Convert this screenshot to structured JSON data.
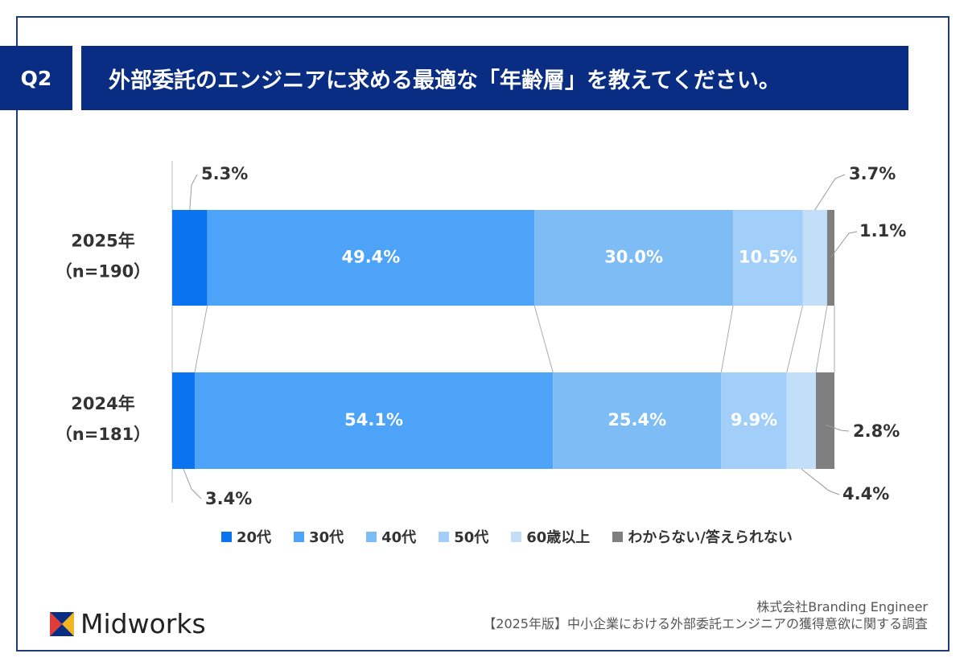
{
  "header": {
    "question_badge": "Q2",
    "title": "外部委託のエンジニアに求める最適な「年齢層」を教えてください。"
  },
  "chart_data": {
    "type": "bar",
    "orientation": "horizontal-stacked-100",
    "categories": [
      "2025年",
      "2024年"
    ],
    "category_sublabels": [
      "（n=190）",
      "（n=181）"
    ],
    "series": [
      {
        "name": "20代",
        "values": [
          5.3,
          3.4
        ],
        "color": "#0a74f0"
      },
      {
        "name": "30代",
        "values": [
          49.4,
          54.1
        ],
        "color": "#4da3f8"
      },
      {
        "name": "40代",
        "values": [
          30.0,
          25.4
        ],
        "color": "#7ebcf6"
      },
      {
        "name": "50代",
        "values": [
          10.5,
          9.9
        ],
        "color": "#a2cffa"
      },
      {
        "name": "60歳以上",
        "values": [
          3.7,
          4.4
        ],
        "color": "#c2def9"
      },
      {
        "name": "わからない/答えられない",
        "values": [
          1.1,
          2.8
        ],
        "color": "#7f7f7f"
      }
    ],
    "value_labels": [
      [
        "5.3%",
        "49.4%",
        "30.0%",
        "10.5%",
        "3.7%",
        "1.1%"
      ],
      [
        "3.4%",
        "54.1%",
        "25.4%",
        "9.9%",
        "4.4%",
        "2.8%"
      ]
    ],
    "xlim": [
      0,
      100
    ],
    "legend_position": "bottom",
    "grid": false
  },
  "footer": {
    "logo_text": "Midworks",
    "company": "株式会社Branding Engineer",
    "survey": "【2025年版】中小企業における外部委託エンジニアの獲得意欲に関する調査"
  }
}
